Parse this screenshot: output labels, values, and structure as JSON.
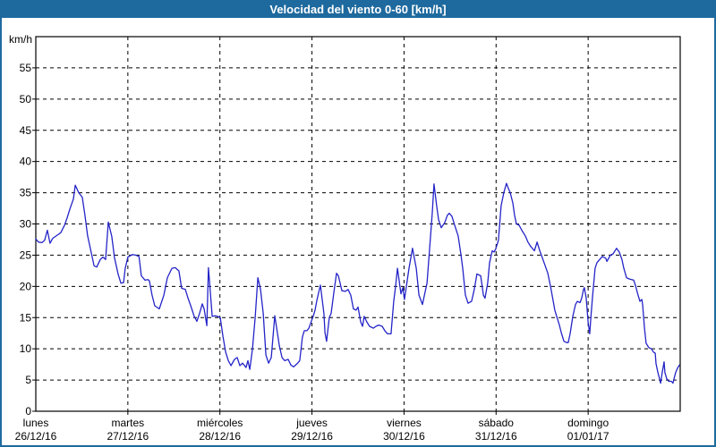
{
  "window": {
    "title": "Velocidad del viento 0-60 [km/h]"
  },
  "colors": {
    "frame": "#1e6a9e",
    "titlebar_bg": "#1e6a9e",
    "titlebar_text": "#ffffff",
    "background": "#ffffff",
    "plot_border": "#000000",
    "grid": "#000000",
    "text": "#000000",
    "series_line": "#2424c8"
  },
  "chart_data": {
    "type": "line",
    "title": "Velocidad del viento 0-60 [km/h]",
    "ylabel": "km/h",
    "grid": "dashed",
    "legend": "none",
    "y_axis": {
      "min": 0,
      "max": 60,
      "tick_step": 5,
      "unit": "km/h",
      "ticks": [
        0,
        5,
        10,
        15,
        20,
        25,
        30,
        35,
        40,
        45,
        50,
        55
      ]
    },
    "x_axis": {
      "unit": "hours",
      "hours_total": 168,
      "boundaries": [
        {
          "name": "lunes",
          "date": "26/12/16"
        },
        {
          "name": "martes",
          "date": "27/12/16"
        },
        {
          "name": "miércoles",
          "date": "28/12/16"
        },
        {
          "name": "jueves",
          "date": "29/12/16"
        },
        {
          "name": "viernes",
          "date": "30/12/16"
        },
        {
          "name": "sábado",
          "date": "31/12/16"
        },
        {
          "name": "domingo",
          "date": "01/01/17"
        }
      ]
    },
    "series": [
      {
        "name": "Velocidad del viento (km/h)",
        "color": "#2424c8",
        "points": [
          [
            0,
            27.6
          ],
          [
            0.7,
            27.1
          ],
          [
            1.6,
            27
          ],
          [
            2.3,
            27.4
          ],
          [
            3,
            29
          ],
          [
            3.7,
            26.9
          ],
          [
            4.4,
            27.7
          ],
          [
            5.1,
            28
          ],
          [
            5.8,
            28.3
          ],
          [
            6.5,
            28.6
          ],
          [
            7.5,
            29.8
          ],
          [
            8.2,
            31
          ],
          [
            8.9,
            32.4
          ],
          [
            9.8,
            34
          ],
          [
            10.3,
            36.2
          ],
          [
            11.2,
            35
          ],
          [
            12.1,
            34.3
          ],
          [
            12.8,
            31.4
          ],
          [
            13.5,
            28.1
          ],
          [
            14.5,
            25.3
          ],
          [
            15.2,
            23.3
          ],
          [
            15.9,
            23.1
          ],
          [
            16.8,
            24.3
          ],
          [
            17.5,
            24.7
          ],
          [
            18.2,
            24.3
          ],
          [
            18.9,
            30.3
          ],
          [
            19.8,
            28
          ],
          [
            20.5,
            24.6
          ],
          [
            21.5,
            21.9
          ],
          [
            22.2,
            20.5
          ],
          [
            22.9,
            20.6
          ],
          [
            23.3,
            22.9
          ],
          [
            24,
            24.7
          ],
          [
            25.2,
            25.1
          ],
          [
            26,
            25
          ],
          [
            26.9,
            24.8
          ],
          [
            27.5,
            21.7
          ],
          [
            28.5,
            21
          ],
          [
            29.2,
            21.1
          ],
          [
            29.6,
            20.9
          ],
          [
            30.3,
            18.6
          ],
          [
            31,
            16.9
          ],
          [
            32.2,
            16.4
          ],
          [
            33.4,
            18.6
          ],
          [
            34.3,
            21.4
          ],
          [
            35.5,
            22.9
          ],
          [
            36.4,
            23
          ],
          [
            36.9,
            22.7
          ],
          [
            37.3,
            22.5
          ],
          [
            38,
            19.7
          ],
          [
            39,
            19.5
          ],
          [
            39.7,
            18.1
          ],
          [
            40.4,
            16.9
          ],
          [
            41.3,
            15.2
          ],
          [
            42,
            14.4
          ],
          [
            42.7,
            15.7
          ],
          [
            43.4,
            17.2
          ],
          [
            43.9,
            16.4
          ],
          [
            44.6,
            13.7
          ],
          [
            45,
            23
          ],
          [
            46,
            15.2
          ],
          [
            46.7,
            15.3
          ],
          [
            47.4,
            15.2
          ],
          [
            48.1,
            15
          ],
          [
            48.8,
            12
          ],
          [
            49.5,
            9.5
          ],
          [
            50.2,
            8.1
          ],
          [
            50.9,
            7.3
          ],
          [
            51.8,
            8.3
          ],
          [
            52.5,
            8.6
          ],
          [
            53.2,
            7.3
          ],
          [
            53.9,
            7.7
          ],
          [
            54.8,
            7
          ],
          [
            55.3,
            8.1
          ],
          [
            55.8,
            6.7
          ],
          [
            56.5,
            10
          ],
          [
            57.2,
            15
          ],
          [
            57.9,
            21.4
          ],
          [
            58.6,
            19.5
          ],
          [
            59.3,
            15.7
          ],
          [
            60,
            9
          ],
          [
            60.7,
            7.7
          ],
          [
            61.4,
            8.6
          ],
          [
            62.3,
            15.3
          ],
          [
            63,
            12.5
          ],
          [
            63.5,
            10.5
          ],
          [
            64.2,
            8.6
          ],
          [
            64.9,
            8.1
          ],
          [
            65.8,
            8.3
          ],
          [
            66.5,
            7.4
          ],
          [
            67.2,
            7.1
          ],
          [
            68.1,
            7.6
          ],
          [
            68.8,
            8.1
          ],
          [
            69.5,
            11.9
          ],
          [
            70,
            12.9
          ],
          [
            70.7,
            12.9
          ],
          [
            71.2,
            13.3
          ],
          [
            71.9,
            14.5
          ],
          [
            72.3,
            15.2
          ],
          [
            72.8,
            16.2
          ],
          [
            73.3,
            17.8
          ],
          [
            74.2,
            20.2
          ],
          [
            75.1,
            15.7
          ],
          [
            75.4,
            12.6
          ],
          [
            75.8,
            11.2
          ],
          [
            76.5,
            15
          ],
          [
            77,
            15.7
          ],
          [
            77.7,
            19
          ],
          [
            78.4,
            22.1
          ],
          [
            78.9,
            21.7
          ],
          [
            79.8,
            19.3
          ],
          [
            80.7,
            19.2
          ],
          [
            81.4,
            19.5
          ],
          [
            82.1,
            18.6
          ],
          [
            82.8,
            16.4
          ],
          [
            83.5,
            16.2
          ],
          [
            84,
            16.7
          ],
          [
            84.7,
            14.3
          ],
          [
            85.2,
            13.6
          ],
          [
            85.6,
            15.2
          ],
          [
            86.3,
            14.3
          ],
          [
            87,
            13.6
          ],
          [
            88,
            13.3
          ],
          [
            88.7,
            13.6
          ],
          [
            89.4,
            13.8
          ],
          [
            90.3,
            13.6
          ],
          [
            91,
            12.9
          ],
          [
            91.7,
            12.4
          ],
          [
            92.6,
            12.4
          ],
          [
            93.3,
            17.6
          ],
          [
            93.8,
            20
          ],
          [
            94.3,
            22.9
          ],
          [
            95.2,
            18.8
          ],
          [
            95.7,
            19.8
          ],
          [
            96.1,
            17.9
          ],
          [
            97.3,
            22.9
          ],
          [
            98.2,
            26.1
          ],
          [
            99.2,
            22.9
          ],
          [
            99.9,
            18.6
          ],
          [
            100.8,
            17.1
          ],
          [
            102,
            20.5
          ],
          [
            102.7,
            26.2
          ],
          [
            103.4,
            32
          ],
          [
            103.8,
            36.4
          ],
          [
            104.5,
            32.9
          ],
          [
            105,
            30.7
          ],
          [
            105.7,
            29.4
          ],
          [
            106.6,
            30.2
          ],
          [
            107.3,
            31.4
          ],
          [
            107.8,
            31.7
          ],
          [
            108.5,
            31.2
          ],
          [
            109.2,
            29.8
          ],
          [
            110.1,
            28.1
          ],
          [
            110.8,
            25.2
          ],
          [
            111.3,
            22.9
          ],
          [
            112,
            18.6
          ],
          [
            112.7,
            17.3
          ],
          [
            113.6,
            17.6
          ],
          [
            114.3,
            19.5
          ],
          [
            115,
            22
          ],
          [
            116,
            21.7
          ],
          [
            116.7,
            18.6
          ],
          [
            117.1,
            18.1
          ],
          [
            117.8,
            20.5
          ],
          [
            118.3,
            23.8
          ],
          [
            119,
            25.7
          ],
          [
            119.5,
            25.5
          ],
          [
            119.9,
            26
          ],
          [
            120.6,
            27.4
          ],
          [
            121.3,
            32.9
          ],
          [
            122,
            35
          ],
          [
            122.7,
            36.5
          ],
          [
            123.2,
            35.7
          ],
          [
            123.7,
            35
          ],
          [
            124.4,
            33.3
          ],
          [
            124.8,
            31.4
          ],
          [
            125.3,
            30
          ],
          [
            126,
            29.8
          ],
          [
            126.7,
            29
          ],
          [
            127.6,
            28.1
          ],
          [
            128.3,
            27.1
          ],
          [
            129,
            26.4
          ],
          [
            130,
            25.7
          ],
          [
            130.7,
            27.1
          ],
          [
            131.4,
            25.7
          ],
          [
            131.8,
            25
          ],
          [
            132.5,
            23.8
          ],
          [
            133.5,
            22.1
          ],
          [
            134.2,
            20
          ],
          [
            134.6,
            18.6
          ],
          [
            135.3,
            16.2
          ],
          [
            135.8,
            15.2
          ],
          [
            136.5,
            13.8
          ],
          [
            137,
            12.6
          ],
          [
            137.7,
            11.2
          ],
          [
            138.4,
            11
          ],
          [
            138.8,
            11
          ],
          [
            139.3,
            12.4
          ],
          [
            140,
            15.2
          ],
          [
            140.7,
            17.1
          ],
          [
            141.2,
            17.6
          ],
          [
            141.9,
            17.4
          ],
          [
            142.3,
            18.1
          ],
          [
            142.8,
            19.5
          ],
          [
            143,
            19.8
          ],
          [
            143.5,
            18.1
          ],
          [
            144,
            14.3
          ],
          [
            144.4,
            12.4
          ],
          [
            144.7,
            14.8
          ],
          [
            145.1,
            18.1
          ],
          [
            145.8,
            22.9
          ],
          [
            146.3,
            23.8
          ],
          [
            147,
            24.3
          ],
          [
            147.7,
            24.8
          ],
          [
            148.6,
            24.5
          ],
          [
            148.9,
            24
          ],
          [
            149.8,
            25
          ],
          [
            150.5,
            25.2
          ],
          [
            151.4,
            26.1
          ],
          [
            152.1,
            25.5
          ],
          [
            152.8,
            24.3
          ],
          [
            153.3,
            22.9
          ],
          [
            154,
            21.4
          ],
          [
            154.7,
            21.2
          ],
          [
            155.9,
            21
          ],
          [
            156.3,
            20.2
          ],
          [
            157,
            18.6
          ],
          [
            157.5,
            17.6
          ],
          [
            158,
            17.9
          ],
          [
            158.2,
            17.1
          ],
          [
            158.7,
            13.3
          ],
          [
            159.1,
            10.9
          ],
          [
            159.8,
            10.2
          ],
          [
            160.5,
            10
          ],
          [
            161,
            9.5
          ],
          [
            161.5,
            9.3
          ],
          [
            161.7,
            7.6
          ],
          [
            162.2,
            6.2
          ],
          [
            162.6,
            5.2
          ],
          [
            162.9,
            4.5
          ],
          [
            163.3,
            6.2
          ],
          [
            163.8,
            7.9
          ],
          [
            164,
            6.2
          ],
          [
            164.5,
            5.2
          ],
          [
            165,
            4.8
          ],
          [
            165.7,
            4.8
          ],
          [
            166.1,
            4.5
          ],
          [
            166.4,
            5.2
          ],
          [
            166.8,
            6.2
          ],
          [
            167.3,
            6.9
          ],
          [
            167.8,
            7.4
          ]
        ]
      }
    ]
  }
}
